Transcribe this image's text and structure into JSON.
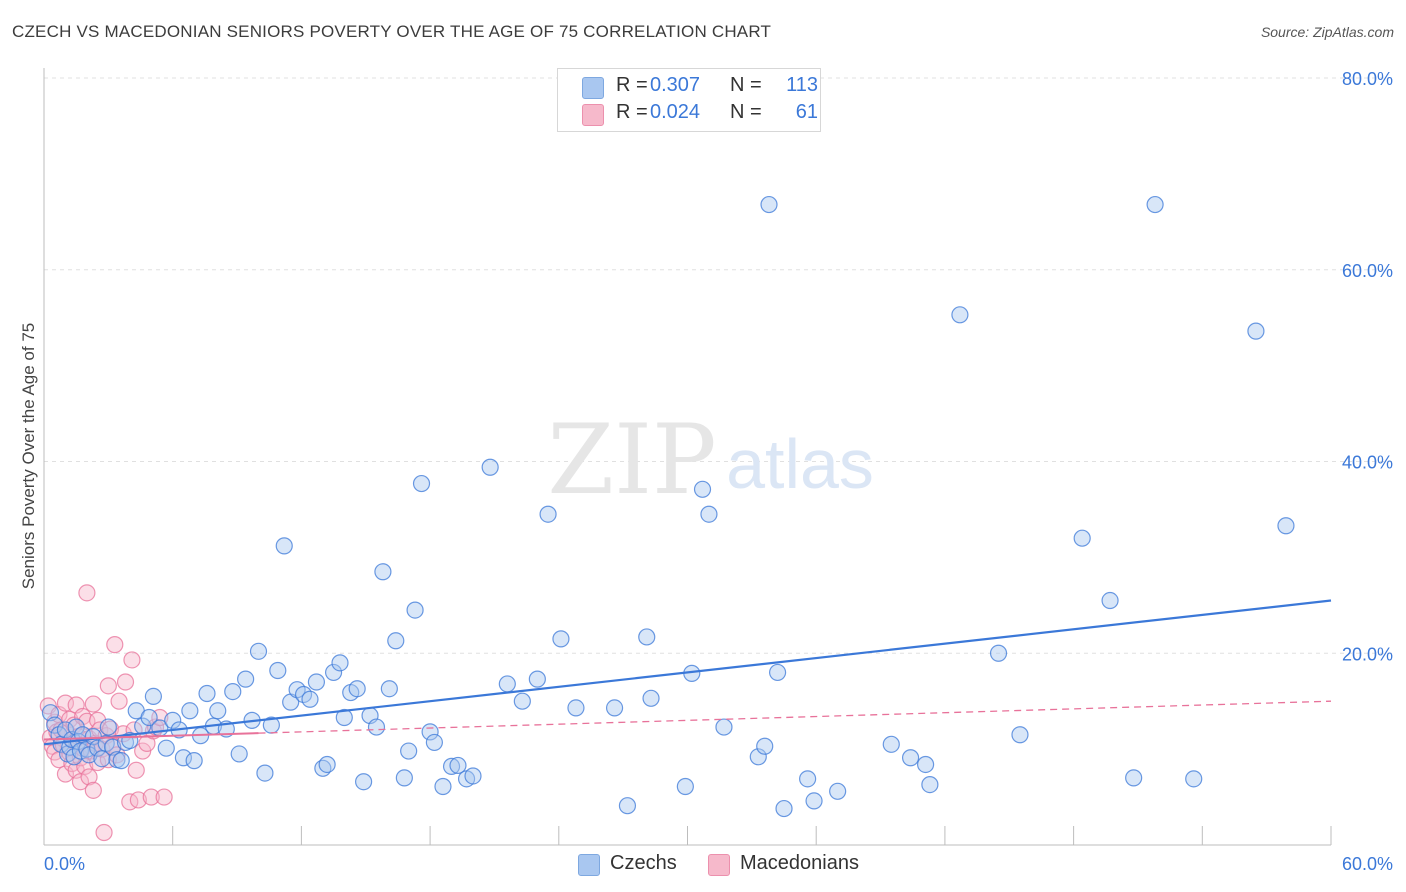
{
  "header": {
    "title": "CZECH VS MACEDONIAN SENIORS POVERTY OVER THE AGE OF 75 CORRELATION CHART",
    "source": "Source: ZipAtlas.com"
  },
  "watermark": {
    "zip": "ZIP",
    "atlas": "atlas"
  },
  "legend": [
    {
      "r_label": "R =",
      "r_value": "0.307",
      "n_label": "N =",
      "n_value": "113",
      "color": "#a9c7f0"
    },
    {
      "r_label": "R =",
      "r_value": "0.024",
      "n_label": "N =",
      "n_value": "61",
      "color": "#f6b9cb"
    }
  ],
  "chart_data": {
    "type": "scatter",
    "title": "CZECH VS MACEDONIAN SENIORS POVERTY OVER THE AGE OF 75 CORRELATION CHART",
    "xlabel": "",
    "ylabel": "Seniors Poverty Over the Age of 75",
    "xlim": [
      0,
      60
    ],
    "ylim": [
      0,
      80
    ],
    "x_tick_labels": [
      "0.0%",
      "60.0%"
    ],
    "y_tick_labels": [
      "20.0%",
      "40.0%",
      "60.0%",
      "80.0%"
    ],
    "y_ticks": [
      20,
      40,
      60,
      80
    ],
    "grid": true,
    "legend_position": "top-center and bottom",
    "series": [
      {
        "name": "Czechs",
        "color": "#3b78d8",
        "fill": "#a9c7f0",
        "trend": {
          "x": [
            0,
            60
          ],
          "y": [
            10.5,
            25.5
          ],
          "style": "solid"
        },
        "points": [
          [
            0.3,
            13.8
          ],
          [
            0.5,
            12.5
          ],
          [
            0.7,
            11.5
          ],
          [
            0.8,
            10.5
          ],
          [
            1.0,
            12.0
          ],
          [
            1.1,
            9.5
          ],
          [
            1.2,
            10.2
          ],
          [
            1.3,
            11.0
          ],
          [
            1.4,
            9.2
          ],
          [
            1.5,
            12.3
          ],
          [
            1.6,
            10.8
          ],
          [
            1.7,
            9.8
          ],
          [
            1.8,
            11.5
          ],
          [
            2.0,
            10.0
          ],
          [
            2.1,
            9.4
          ],
          [
            2.3,
            11.3
          ],
          [
            2.5,
            10.1
          ],
          [
            2.7,
            9.0
          ],
          [
            2.9,
            10.6
          ],
          [
            3.0,
            12.3
          ],
          [
            3.2,
            10.2
          ],
          [
            3.4,
            8.9
          ],
          [
            3.6,
            8.8
          ],
          [
            3.8,
            10.7
          ],
          [
            4.0,
            10.9
          ],
          [
            4.3,
            14.0
          ],
          [
            4.6,
            12.4
          ],
          [
            4.9,
            13.3
          ],
          [
            5.1,
            15.5
          ],
          [
            5.4,
            12.2
          ],
          [
            5.7,
            10.1
          ],
          [
            6.0,
            13.0
          ],
          [
            6.3,
            12.0
          ],
          [
            6.5,
            9.1
          ],
          [
            6.8,
            14.0
          ],
          [
            7.0,
            8.8
          ],
          [
            7.3,
            11.4
          ],
          [
            7.6,
            15.8
          ],
          [
            7.9,
            12.4
          ],
          [
            8.1,
            14.0
          ],
          [
            8.5,
            12.1
          ],
          [
            8.8,
            16.0
          ],
          [
            9.1,
            9.5
          ],
          [
            9.4,
            17.3
          ],
          [
            9.7,
            13.0
          ],
          [
            10.0,
            20.2
          ],
          [
            10.3,
            7.5
          ],
          [
            10.6,
            12.5
          ],
          [
            10.9,
            18.2
          ],
          [
            11.2,
            31.2
          ],
          [
            11.5,
            14.9
          ],
          [
            11.8,
            16.2
          ],
          [
            12.1,
            15.7
          ],
          [
            12.4,
            15.2
          ],
          [
            12.7,
            17.0
          ],
          [
            13.0,
            8.0
          ],
          [
            13.2,
            8.4
          ],
          [
            13.5,
            18.0
          ],
          [
            13.8,
            19.0
          ],
          [
            14.0,
            13.3
          ],
          [
            14.3,
            15.9
          ],
          [
            14.6,
            16.3
          ],
          [
            14.9,
            6.6
          ],
          [
            15.2,
            13.5
          ],
          [
            15.5,
            12.3
          ],
          [
            15.8,
            28.5
          ],
          [
            16.1,
            16.3
          ],
          [
            16.4,
            21.3
          ],
          [
            16.8,
            7.0
          ],
          [
            17.0,
            9.8
          ],
          [
            17.3,
            24.5
          ],
          [
            17.6,
            37.7
          ],
          [
            18.0,
            11.8
          ],
          [
            18.2,
            10.7
          ],
          [
            18.6,
            6.1
          ],
          [
            19.0,
            8.2
          ],
          [
            19.3,
            8.3
          ],
          [
            19.7,
            6.9
          ],
          [
            20.0,
            7.2
          ],
          [
            20.8,
            39.4
          ],
          [
            21.6,
            16.8
          ],
          [
            22.3,
            15.0
          ],
          [
            23.0,
            17.3
          ],
          [
            23.5,
            34.5
          ],
          [
            24.1,
            21.5
          ],
          [
            24.8,
            14.3
          ],
          [
            26.6,
            14.3
          ],
          [
            27.2,
            4.1
          ],
          [
            28.1,
            21.7
          ],
          [
            28.3,
            15.3
          ],
          [
            29.9,
            6.1
          ],
          [
            30.2,
            17.9
          ],
          [
            30.7,
            37.1
          ],
          [
            31.0,
            34.5
          ],
          [
            31.7,
            12.3
          ],
          [
            33.3,
            9.2
          ],
          [
            33.6,
            10.3
          ],
          [
            33.8,
            66.8
          ],
          [
            34.2,
            18.0
          ],
          [
            34.5,
            3.8
          ],
          [
            35.6,
            6.9
          ],
          [
            35.9,
            4.6
          ],
          [
            37.0,
            5.6
          ],
          [
            39.5,
            10.5
          ],
          [
            40.4,
            9.1
          ],
          [
            41.1,
            8.4
          ],
          [
            41.3,
            6.3
          ],
          [
            42.7,
            55.3
          ],
          [
            44.5,
            20.0
          ],
          [
            45.5,
            11.5
          ],
          [
            48.4,
            32.0
          ],
          [
            49.7,
            25.5
          ],
          [
            50.8,
            7.0
          ],
          [
            51.8,
            66.8
          ],
          [
            53.6,
            6.9
          ],
          [
            56.5,
            53.6
          ],
          [
            57.9,
            33.3
          ]
        ]
      },
      {
        "name": "Macedonians",
        "color": "#e8729a",
        "fill": "#f6b9cb",
        "trend": {
          "x": [
            0,
            60
          ],
          "y": [
            11.0,
            15.0
          ],
          "style": "dashed"
        },
        "points": [
          [
            0.2,
            14.5
          ],
          [
            0.3,
            11.2
          ],
          [
            0.4,
            10.3
          ],
          [
            0.5,
            12.8
          ],
          [
            0.5,
            9.7
          ],
          [
            0.6,
            11.8
          ],
          [
            0.7,
            13.6
          ],
          [
            0.7,
            8.9
          ],
          [
            0.8,
            12.0
          ],
          [
            0.9,
            10.4
          ],
          [
            1.0,
            14.8
          ],
          [
            1.0,
            7.4
          ],
          [
            1.1,
            11.7
          ],
          [
            1.2,
            9.6
          ],
          [
            1.2,
            13.1
          ],
          [
            1.3,
            8.5
          ],
          [
            1.4,
            10.8
          ],
          [
            1.4,
            12.5
          ],
          [
            1.5,
            14.6
          ],
          [
            1.5,
            7.8
          ],
          [
            1.6,
            11.3
          ],
          [
            1.7,
            9.1
          ],
          [
            1.7,
            6.6
          ],
          [
            1.8,
            13.4
          ],
          [
            1.8,
            10.1
          ],
          [
            1.9,
            8.2
          ],
          [
            2.0,
            12.9
          ],
          [
            2.0,
            26.3
          ],
          [
            2.1,
            11.1
          ],
          [
            2.1,
            7.1
          ],
          [
            2.2,
            9.8
          ],
          [
            2.3,
            14.7
          ],
          [
            2.3,
            5.7
          ],
          [
            2.4,
            10.6
          ],
          [
            2.5,
            8.6
          ],
          [
            2.5,
            13.0
          ],
          [
            2.6,
            12.0
          ],
          [
            2.7,
            10.0
          ],
          [
            2.8,
            1.3
          ],
          [
            2.9,
            11.4
          ],
          [
            3.0,
            16.6
          ],
          [
            3.0,
            8.9
          ],
          [
            3.1,
            12.1
          ],
          [
            3.2,
            10.3
          ],
          [
            3.3,
            20.9
          ],
          [
            3.4,
            9.4
          ],
          [
            3.5,
            15.0
          ],
          [
            3.7,
            11.6
          ],
          [
            3.8,
            17.0
          ],
          [
            4.0,
            4.5
          ],
          [
            4.1,
            19.3
          ],
          [
            4.2,
            12.0
          ],
          [
            4.3,
            7.8
          ],
          [
            4.4,
            4.7
          ],
          [
            4.6,
            9.8
          ],
          [
            4.8,
            10.6
          ],
          [
            5.0,
            5.0
          ],
          [
            5.1,
            11.9
          ],
          [
            5.2,
            12.3
          ],
          [
            5.4,
            13.3
          ],
          [
            5.6,
            5.0
          ]
        ]
      }
    ]
  }
}
